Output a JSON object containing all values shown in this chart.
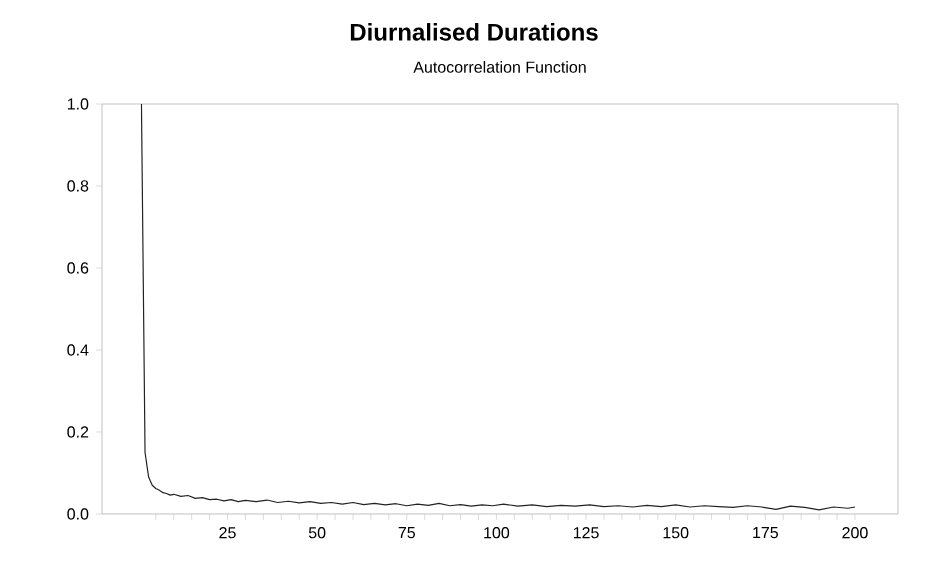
{
  "chart_data": {
    "type": "line",
    "title": "Diurnalised Durations",
    "subtitle": "Autocorrelation Function",
    "x": [
      1,
      2,
      3,
      4,
      5,
      6,
      7,
      8,
      9,
      10,
      12,
      14,
      16,
      18,
      20,
      22,
      24,
      26,
      28,
      30,
      33,
      36,
      39,
      42,
      45,
      48,
      51,
      54,
      57,
      60,
      63,
      66,
      69,
      72,
      75,
      78,
      81,
      84,
      87,
      90,
      93,
      96,
      99,
      102,
      106,
      110,
      114,
      118,
      122,
      126,
      130,
      134,
      138,
      142,
      146,
      150,
      154,
      158,
      162,
      166,
      170,
      174,
      178,
      182,
      186,
      190,
      194,
      198,
      200
    ],
    "series": [
      {
        "color": "#222222",
        "values": [
          1.0,
          0.15,
          0.09,
          0.07,
          0.062,
          0.058,
          0.052,
          0.05,
          0.046,
          0.048,
          0.043,
          0.045,
          0.038,
          0.04,
          0.035,
          0.036,
          0.032,
          0.035,
          0.03,
          0.033,
          0.03,
          0.034,
          0.028,
          0.031,
          0.027,
          0.03,
          0.026,
          0.028,
          0.024,
          0.028,
          0.023,
          0.026,
          0.022,
          0.025,
          0.02,
          0.024,
          0.021,
          0.026,
          0.02,
          0.023,
          0.019,
          0.022,
          0.02,
          0.024,
          0.019,
          0.022,
          0.018,
          0.021,
          0.019,
          0.022,
          0.018,
          0.02,
          0.017,
          0.021,
          0.018,
          0.022,
          0.017,
          0.02,
          0.018,
          0.016,
          0.02,
          0.017,
          0.011,
          0.019,
          0.016,
          0.01,
          0.017,
          0.014,
          0.017
        ]
      }
    ],
    "xlim": [
      -10,
      212
    ],
    "ylim": [
      0,
      1
    ],
    "xticks": [
      {
        "value": 5,
        "label": null
      },
      {
        "value": 10,
        "label": null
      },
      {
        "value": 15,
        "label": null
      },
      {
        "value": 20,
        "label": null
      },
      25,
      {
        "value": 30,
        "label": null
      },
      {
        "value": 35,
        "label": null
      },
      {
        "value": 40,
        "label": null
      },
      {
        "value": 45,
        "label": null
      },
      50,
      {
        "value": 55,
        "label": null
      },
      {
        "value": 60,
        "label": null
      },
      {
        "value": 65,
        "label": null
      },
      {
        "value": 70,
        "label": null
      },
      75,
      {
        "value": 80,
        "label": null
      },
      {
        "value": 85,
        "label": null
      },
      {
        "value": 90,
        "label": null
      },
      {
        "value": 95,
        "label": null
      },
      100,
      {
        "value": 105,
        "label": null
      },
      {
        "value": 110,
        "label": null
      },
      {
        "value": 115,
        "label": null
      },
      {
        "value": 120,
        "label": null
      },
      125,
      {
        "value": 130,
        "label": null
      },
      {
        "value": 135,
        "label": null
      },
      {
        "value": 140,
        "label": null
      },
      {
        "value": 145,
        "label": null
      },
      150,
      {
        "value": 155,
        "label": null
      },
      {
        "value": 160,
        "label": null
      },
      {
        "value": 165,
        "label": null
      },
      {
        "value": 170,
        "label": null
      },
      175,
      {
        "value": 180,
        "label": null
      },
      {
        "value": 185,
        "label": null
      },
      {
        "value": 190,
        "label": null
      },
      {
        "value": 195,
        "label": null
      },
      200
    ],
    "yticks": [
      {
        "value": 0,
        "label": "0.0"
      },
      0.2,
      0.4,
      0.6,
      0.8,
      {
        "value": 1,
        "label": "1.0"
      }
    ],
    "marker": "none",
    "line_style": "solid"
  }
}
